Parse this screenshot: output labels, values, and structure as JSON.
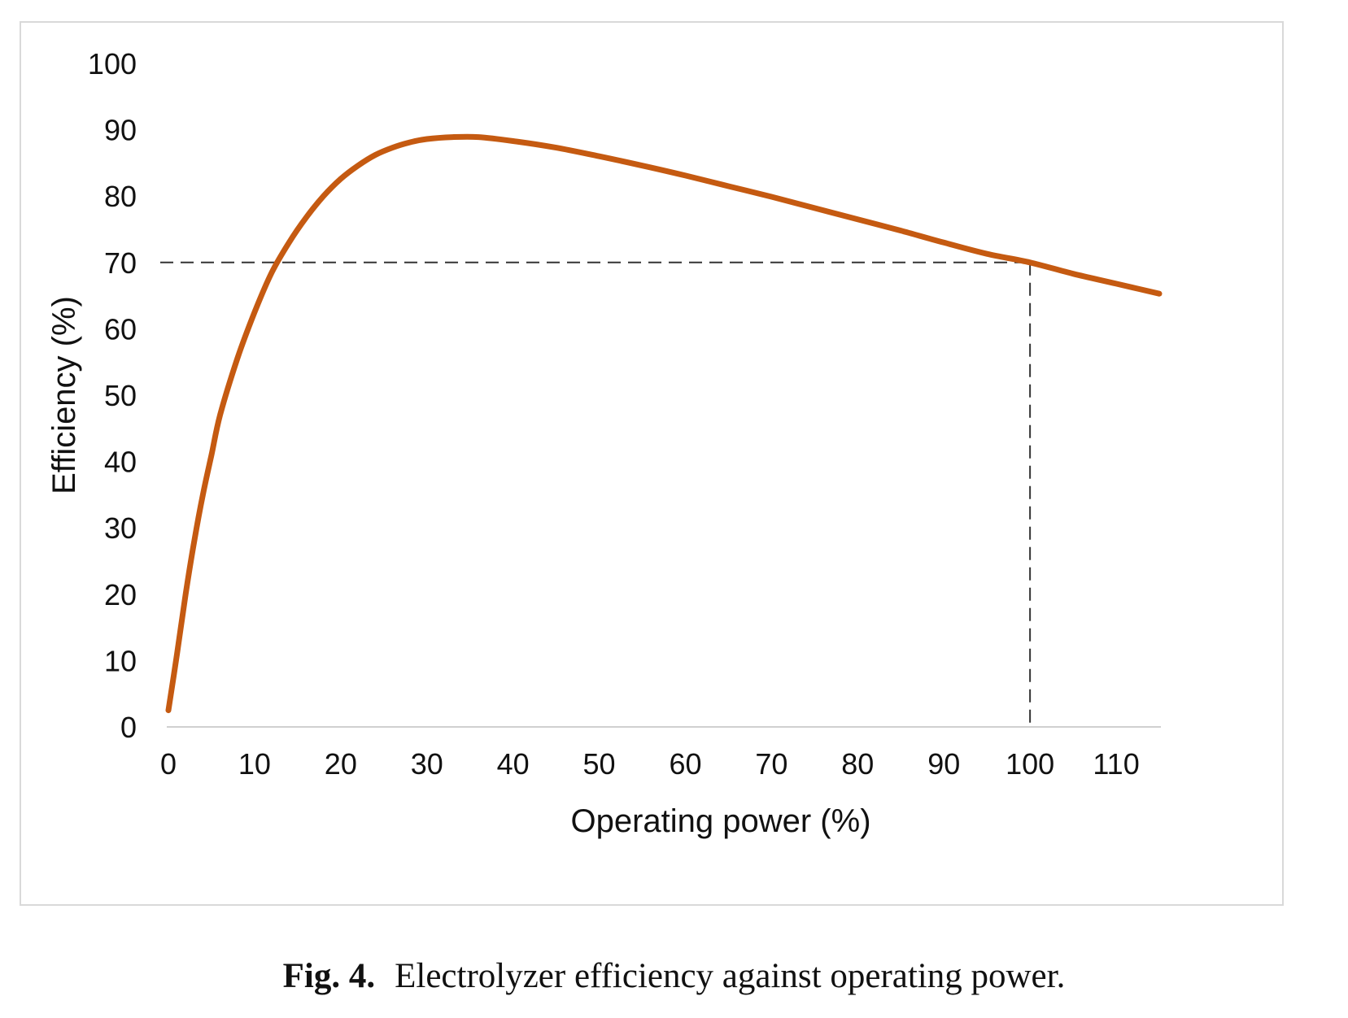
{
  "caption": {
    "label": "Fig. 4.",
    "text": "Electrolyzer efficiency against operating power."
  },
  "chart_data": {
    "type": "line",
    "title": "",
    "xlabel": "Operating power (%)",
    "ylabel": "Efficiency (%)",
    "xlim": [
      0,
      115
    ],
    "ylim": [
      0,
      100
    ],
    "xticks": [
      0,
      10,
      20,
      30,
      40,
      50,
      60,
      70,
      80,
      90,
      100,
      110
    ],
    "yticks": [
      0,
      10,
      20,
      30,
      40,
      50,
      60,
      70,
      80,
      90,
      100
    ],
    "grid": false,
    "legend": "none",
    "series": [
      {
        "color": "#c55a11",
        "x": [
          0,
          1,
          2,
          3,
          4,
          5,
          6,
          8,
          10,
          12,
          14,
          16,
          18,
          20,
          22,
          24,
          26,
          28,
          30,
          33,
          36,
          40,
          45,
          50,
          55,
          60,
          65,
          70,
          75,
          80,
          85,
          90,
          95,
          100,
          105,
          110,
          115
        ],
        "y": [
          2.5,
          11,
          20,
          28,
          35,
          41,
          47,
          55.5,
          62.5,
          68.5,
          73,
          76.8,
          80,
          82.6,
          84.6,
          86.2,
          87.3,
          88.1,
          88.6,
          88.9,
          88.9,
          88.3,
          87.3,
          86,
          84.6,
          83.1,
          81.5,
          79.9,
          78.2,
          76.5,
          74.8,
          73,
          71.3,
          70,
          68.3,
          66.8,
          65.3
        ]
      }
    ],
    "reference_lines": {
      "color": "#333333",
      "style": "dashed",
      "y_value": 70,
      "x_value": 100
    }
  }
}
